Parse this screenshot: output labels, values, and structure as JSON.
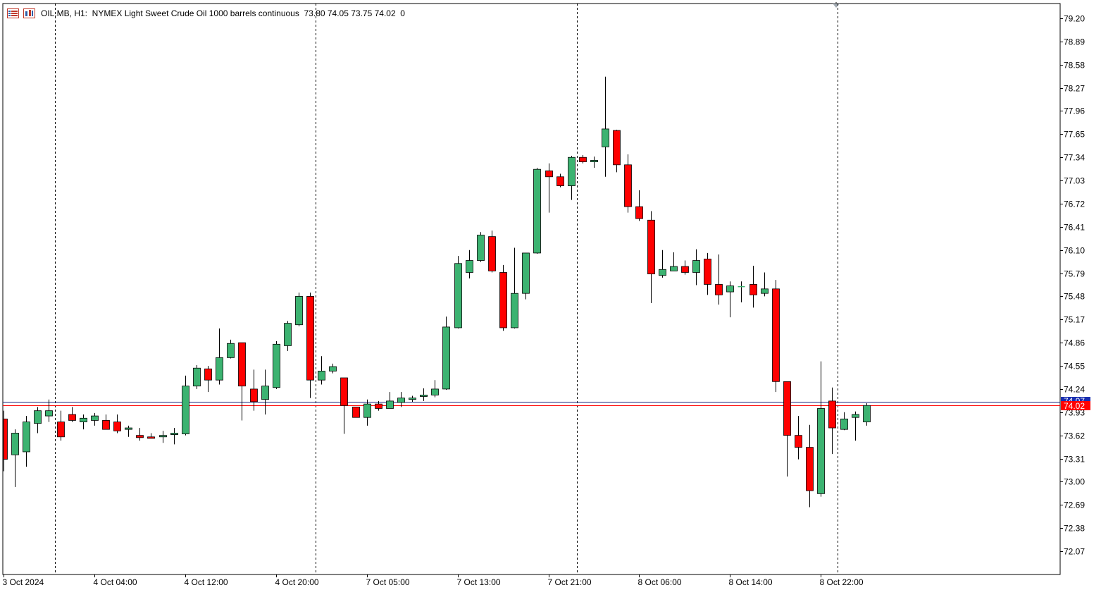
{
  "header": {
    "text": "OIL.MB, H1:  NYMEX Light Sweet Crude Oil 1000 barrels continuous  73.80 74.05 73.75 74.02  0",
    "icons": [
      "chart-list-icon",
      "chart-properties-icon"
    ]
  },
  "colors": {
    "bull": "#3cb371",
    "bear": "#ff0000",
    "wick": "#000000",
    "bid_line": "#ff0000",
    "ask_line": "#1a237e",
    "grid": "#000000"
  },
  "price_tags": {
    "ask": "74.07",
    "bid": "74.02"
  },
  "chart_data": {
    "type": "candlestick",
    "symbol": "OIL.MB",
    "timeframe": "H1",
    "ylim": [
      71.76,
      79.45
    ],
    "y_ticks": [
      "79.20",
      "78.89",
      "78.58",
      "78.27",
      "77.96",
      "77.65",
      "77.34",
      "77.03",
      "76.72",
      "76.41",
      "76.10",
      "75.79",
      "75.48",
      "75.17",
      "74.86",
      "74.55",
      "74.24",
      "73.93",
      "73.62",
      "73.31",
      "73.00",
      "72.69",
      "72.38",
      "72.07"
    ],
    "x_labels": [
      {
        "label": "3 Oct 2024",
        "bar": 0
      },
      {
        "label": "4 Oct 04:00",
        "bar": 8
      },
      {
        "label": "4 Oct 12:00",
        "bar": 16
      },
      {
        "label": "4 Oct 20:00",
        "bar": 24
      },
      {
        "label": "7 Oct 05:00",
        "bar": 32
      },
      {
        "label": "7 Oct 13:00",
        "bar": 40
      },
      {
        "label": "7 Oct 21:00",
        "bar": 48
      },
      {
        "label": "8 Oct 06:00",
        "bar": 56
      },
      {
        "label": "8 Oct 14:00",
        "bar": 64
      },
      {
        "label": "8 Oct 22:00",
        "bar": 72
      }
    ],
    "period_separators": [
      4.5,
      27.5,
      50.5,
      73.5
    ],
    "ask": 74.07,
    "bid": 74.02,
    "bars": [
      [
        73.84,
        73.95,
        73.14,
        73.3
      ],
      [
        73.36,
        73.7,
        72.93,
        73.65
      ],
      [
        73.4,
        73.88,
        73.2,
        73.8
      ],
      [
        73.78,
        74.0,
        73.65,
        73.95
      ],
      [
        73.88,
        74.1,
        73.8,
        73.95
      ],
      [
        73.8,
        73.95,
        73.55,
        73.6
      ],
      [
        73.9,
        74.0,
        73.8,
        73.82
      ],
      [
        73.8,
        73.9,
        73.7,
        73.85
      ],
      [
        73.82,
        73.92,
        73.75,
        73.88
      ],
      [
        73.82,
        73.9,
        73.7,
        73.7
      ],
      [
        73.8,
        73.9,
        73.65,
        73.68
      ],
      [
        73.7,
        73.75,
        73.6,
        73.72
      ],
      [
        73.62,
        73.72,
        73.55,
        73.59
      ],
      [
        73.6,
        73.65,
        73.58,
        73.58
      ],
      [
        73.6,
        73.68,
        73.52,
        73.62
      ],
      [
        73.63,
        73.72,
        73.5,
        73.65
      ],
      [
        73.64,
        74.42,
        73.62,
        74.28
      ],
      [
        74.28,
        74.56,
        74.24,
        74.52
      ],
      [
        74.51,
        74.55,
        74.2,
        74.36
      ],
      [
        74.36,
        75.05,
        74.3,
        74.66
      ],
      [
        74.66,
        74.9,
        74.65,
        74.85
      ],
      [
        74.86,
        74.86,
        73.82,
        74.28
      ],
      [
        74.24,
        74.5,
        73.95,
        74.07
      ],
      [
        74.1,
        74.5,
        73.9,
        74.28
      ],
      [
        74.26,
        74.88,
        74.24,
        74.84
      ],
      [
        74.82,
        75.15,
        74.75,
        75.12
      ],
      [
        75.1,
        75.53,
        75.08,
        75.48
      ],
      [
        75.48,
        75.53,
        74.12,
        74.36
      ],
      [
        74.36,
        74.68,
        74.3,
        74.48
      ],
      [
        74.48,
        74.58,
        74.45,
        74.54
      ],
      [
        74.39,
        74.39,
        73.64,
        74.02
      ],
      [
        74.0,
        74.0,
        73.86,
        73.86
      ],
      [
        73.86,
        74.1,
        73.75,
        74.04
      ],
      [
        74.04,
        74.08,
        73.95,
        73.98
      ],
      [
        73.98,
        74.2,
        73.98,
        74.08
      ],
      [
        74.06,
        74.2,
        74.0,
        74.12
      ],
      [
        74.1,
        74.15,
        74.07,
        74.12
      ],
      [
        74.14,
        74.25,
        74.08,
        74.16
      ],
      [
        74.16,
        74.36,
        74.13,
        74.24
      ],
      [
        74.24,
        75.21,
        74.23,
        75.07
      ],
      [
        75.06,
        76.02,
        75.05,
        75.92
      ],
      [
        75.8,
        76.1,
        75.72,
        75.96
      ],
      [
        75.96,
        76.34,
        75.94,
        76.3
      ],
      [
        76.28,
        76.36,
        75.8,
        75.82
      ],
      [
        75.8,
        75.9,
        75.02,
        75.06
      ],
      [
        75.06,
        76.13,
        75.05,
        75.52
      ],
      [
        75.52,
        76.06,
        75.44,
        76.06
      ],
      [
        76.06,
        77.2,
        76.05,
        77.18
      ],
      [
        77.16,
        77.26,
        76.6,
        77.08
      ],
      [
        77.08,
        77.12,
        76.94,
        76.96
      ],
      [
        76.96,
        77.36,
        76.77,
        77.34
      ],
      [
        77.34,
        77.37,
        77.26,
        77.28
      ],
      [
        77.28,
        77.35,
        77.2,
        77.3
      ],
      [
        77.48,
        78.42,
        77.08,
        77.72
      ],
      [
        77.7,
        77.71,
        77.14,
        77.24
      ],
      [
        77.24,
        77.38,
        76.6,
        76.68
      ],
      [
        76.68,
        76.9,
        76.49,
        76.52
      ],
      [
        76.5,
        76.62,
        75.39,
        75.78
      ],
      [
        75.76,
        76.1,
        75.73,
        75.84
      ],
      [
        75.82,
        76.07,
        75.82,
        75.88
      ],
      [
        75.88,
        75.96,
        75.77,
        75.8
      ],
      [
        75.8,
        76.11,
        75.63,
        75.96
      ],
      [
        75.98,
        76.06,
        75.5,
        75.64
      ],
      [
        75.64,
        76.04,
        75.37,
        75.5
      ],
      [
        75.54,
        75.68,
        75.2,
        75.62
      ],
      [
        75.6,
        75.68,
        75.4,
        75.61
      ],
      [
        75.64,
        75.89,
        75.33,
        75.5
      ],
      [
        75.52,
        75.8,
        75.48,
        75.58
      ],
      [
        75.58,
        75.7,
        74.2,
        74.34
      ],
      [
        74.34,
        74.34,
        73.07,
        73.62
      ],
      [
        73.62,
        73.88,
        73.3,
        73.46
      ],
      [
        73.46,
        73.76,
        72.66,
        72.88
      ],
      [
        72.84,
        74.61,
        72.8,
        73.98
      ],
      [
        74.08,
        74.26,
        73.37,
        73.72
      ],
      [
        73.7,
        73.93,
        73.69,
        73.84
      ],
      [
        73.86,
        73.94,
        73.55,
        73.9
      ],
      [
        73.8,
        74.05,
        73.75,
        74.02
      ]
    ]
  }
}
